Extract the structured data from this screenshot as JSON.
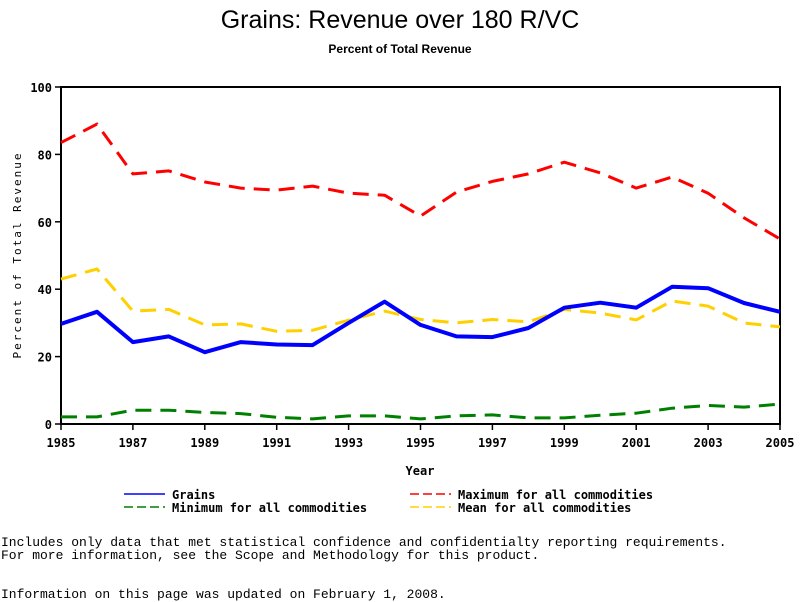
{
  "chart_data": {
    "type": "line",
    "title": "Grains: Revenue over 180 R/VC",
    "subtitle": "Percent of Total Revenue",
    "xlabel": "Year",
    "ylabel": "Percent of Total Revenue",
    "xlim": [
      1985,
      2005
    ],
    "ylim": [
      0,
      100
    ],
    "xticks": [
      1985,
      1987,
      1989,
      1991,
      1993,
      1995,
      1997,
      1999,
      2001,
      2003,
      2005
    ],
    "yticks": [
      0,
      20,
      40,
      60,
      80,
      100
    ],
    "grid": false,
    "legend_position": "bottom",
    "x": [
      1985,
      1986,
      1987,
      1988,
      1989,
      1990,
      1991,
      1992,
      1993,
      1994,
      1995,
      1996,
      1997,
      1998,
      1999,
      2000,
      2001,
      2002,
      2003,
      2004,
      2005
    ],
    "series": [
      {
        "name": "Grains",
        "color": "#0000ff",
        "style": "solid",
        "values": [
          29.7,
          33.3,
          24.3,
          26.0,
          21.3,
          24.3,
          23.6,
          23.4,
          30.0,
          36.3,
          29.4,
          26.0,
          25.8,
          28.5,
          34.5,
          36.0,
          34.5,
          40.7,
          40.3,
          35.9,
          33.3
        ]
      },
      {
        "name": "Maximum for all commodities",
        "color": "#ff0000",
        "style": "dashed",
        "values": [
          83.5,
          89.0,
          74.2,
          75.1,
          71.8,
          70.0,
          69.4,
          70.6,
          68.5,
          67.9,
          61.7,
          68.8,
          72.0,
          74.2,
          77.7,
          74.5,
          70.0,
          73.3,
          68.5,
          61.2,
          54.9
        ]
      },
      {
        "name": "Minimum for all commodities",
        "color": "#008000",
        "style": "dashed",
        "values": [
          2.1,
          2.1,
          4.1,
          4.1,
          3.4,
          3.1,
          2.0,
          1.5,
          2.4,
          2.4,
          1.5,
          2.4,
          2.7,
          1.8,
          1.8,
          2.6,
          3.2,
          4.7,
          5.5,
          5.0,
          5.9
        ]
      },
      {
        "name": "Mean for all commodities",
        "color": "#ffd000",
        "style": "dashed",
        "values": [
          43.0,
          46.0,
          33.5,
          34.0,
          29.4,
          29.7,
          27.5,
          27.8,
          30.8,
          33.5,
          31.0,
          30.0,
          31.0,
          30.3,
          34.0,
          32.9,
          30.9,
          36.5,
          35.0,
          30.0,
          28.8
        ]
      }
    ]
  },
  "legend": [
    {
      "label": "Grains",
      "color": "#0000ff",
      "style": "solid"
    },
    {
      "label": "Maximum for all commodities",
      "color": "#ff0000",
      "style": "dashed"
    },
    {
      "label": "Minimum for all commodities",
      "color": "#008000",
      "style": "dashed"
    },
    {
      "label": "Mean for all commodities",
      "color": "#ffd000",
      "style": "dashed"
    }
  ],
  "footnotes": {
    "line1": "Includes only data that met statistical confidence and confidentialty reporting requirements.",
    "line2": "For more information, see the Scope and Methodology for this product.",
    "updated": "Information on this page was updated on February 1, 2008."
  }
}
